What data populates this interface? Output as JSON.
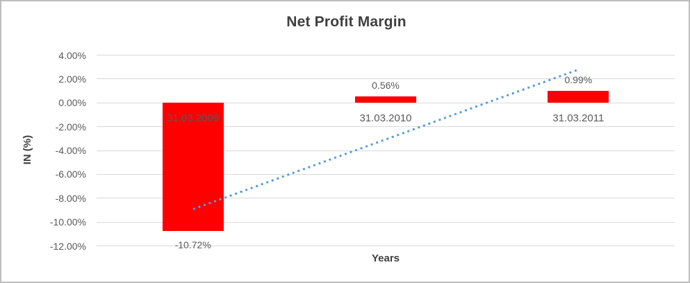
{
  "chart_data": {
    "type": "bar",
    "title": "Net Profit Margin",
    "xlabel": "Years",
    "ylabel": "IN (%)",
    "categories": [
      "31.03.2009",
      "31.03.2010",
      "31.03.2011"
    ],
    "values": [
      -10.72,
      0.56,
      0.99
    ],
    "data_labels": [
      "-10.72%",
      "0.56%",
      "0.99%"
    ],
    "ylim": [
      -12,
      4
    ],
    "ytick_step": 2,
    "ytick_labels": [
      "4.00%",
      "2.00%",
      "0.00%",
      "-2.00%",
      "-4.00%",
      "-6.00%",
      "-8.00%",
      "-10.00%",
      "-12.00%"
    ],
    "ytick_values": [
      4,
      2,
      0,
      -2,
      -4,
      -6,
      -8,
      -10,
      -12
    ],
    "grid": true,
    "legend": false,
    "bar_color": "#ff0000",
    "gridline_color": "#d9d9d9",
    "label_color": "#595959",
    "title_color": "#3f3f3f",
    "trendline": {
      "type": "linear",
      "style": "dotted",
      "color": "#5b9bd5",
      "start_value": -8.91,
      "end_value": 2.8
    }
  }
}
